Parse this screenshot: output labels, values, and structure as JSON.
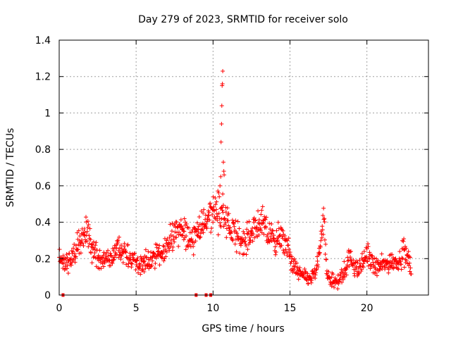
{
  "chart_data": {
    "type": "scatter",
    "title": "Day 279 of 2023, SRMTID for receiver solo",
    "xlabel": "GPS time / hours",
    "ylabel": "SRMTID / TECUs",
    "xlim": [
      0,
      24
    ],
    "ylim": [
      0,
      1.4
    ],
    "xticks": [
      0,
      5,
      10,
      15,
      20
    ],
    "xtick_labels": [
      "0",
      "5",
      "10",
      "15",
      "20"
    ],
    "yticks": [
      0,
      0.2,
      0.4,
      0.6,
      0.8,
      1,
      1.2,
      1.4
    ],
    "ytick_labels": [
      "0",
      "0.2",
      "0.4",
      "0.6",
      "0.8",
      "1",
      "1.2",
      "1.4"
    ],
    "grid": true,
    "legend": "none",
    "marker": "+",
    "colors": {
      "series": "#ff0000",
      "grid": "#a0a0a0",
      "axis": "#000000"
    },
    "series": [
      {
        "name": "SRMTID",
        "anchors": [
          [
            0.0,
            0.2
          ],
          [
            0.2,
            0.19
          ],
          [
            0.5,
            0.17
          ],
          [
            0.7,
            0.19
          ],
          [
            0.9,
            0.22
          ],
          [
            1.1,
            0.25
          ],
          [
            1.3,
            0.27
          ],
          [
            1.5,
            0.3
          ],
          [
            1.7,
            0.33
          ],
          [
            1.9,
            0.34
          ],
          [
            2.1,
            0.28
          ],
          [
            2.3,
            0.24
          ],
          [
            2.5,
            0.22
          ],
          [
            2.7,
            0.2
          ],
          [
            2.9,
            0.19
          ],
          [
            3.2,
            0.2
          ],
          [
            3.5,
            0.22
          ],
          [
            3.8,
            0.24
          ],
          [
            4.0,
            0.25
          ],
          [
            4.3,
            0.23
          ],
          [
            4.6,
            0.2
          ],
          [
            5.0,
            0.18
          ],
          [
            5.4,
            0.17
          ],
          [
            5.8,
            0.18
          ],
          [
            6.2,
            0.2
          ],
          [
            6.6,
            0.23
          ],
          [
            7.0,
            0.27
          ],
          [
            7.4,
            0.32
          ],
          [
            7.8,
            0.35
          ],
          [
            8.2,
            0.34
          ],
          [
            8.5,
            0.3
          ],
          [
            8.8,
            0.33
          ],
          [
            9.1,
            0.37
          ],
          [
            9.4,
            0.38
          ],
          [
            9.7,
            0.42
          ],
          [
            10.0,
            0.47
          ],
          [
            10.3,
            0.46
          ],
          [
            10.6,
            0.44
          ],
          [
            10.9,
            0.38
          ],
          [
            11.2,
            0.35
          ],
          [
            11.5,
            0.32
          ],
          [
            11.8,
            0.3
          ],
          [
            12.1,
            0.3
          ],
          [
            12.4,
            0.32
          ],
          [
            12.7,
            0.37
          ],
          [
            13.0,
            0.4
          ],
          [
            13.3,
            0.38
          ],
          [
            13.6,
            0.32
          ],
          [
            13.9,
            0.3
          ],
          [
            14.2,
            0.3
          ],
          [
            14.5,
            0.3
          ],
          [
            14.8,
            0.27
          ],
          [
            15.0,
            0.21
          ],
          [
            15.3,
            0.15
          ],
          [
            15.6,
            0.12
          ],
          [
            15.9,
            0.1
          ],
          [
            16.2,
            0.09
          ],
          [
            16.5,
            0.1
          ],
          [
            16.8,
            0.16
          ],
          [
            17.0,
            0.3
          ],
          [
            17.2,
            0.4
          ],
          [
            17.4,
            0.11
          ],
          [
            17.7,
            0.08
          ],
          [
            18.0,
            0.07
          ],
          [
            18.2,
            0.08
          ],
          [
            18.5,
            0.12
          ],
          [
            18.8,
            0.2
          ],
          [
            19.1,
            0.18
          ],
          [
            19.4,
            0.13
          ],
          [
            19.7,
            0.17
          ],
          [
            20.0,
            0.23
          ],
          [
            20.3,
            0.17
          ],
          [
            20.6,
            0.15
          ],
          [
            20.9,
            0.16
          ],
          [
            21.2,
            0.17
          ],
          [
            21.5,
            0.18
          ],
          [
            21.8,
            0.19
          ],
          [
            22.1,
            0.19
          ],
          [
            22.4,
            0.24
          ],
          [
            22.7,
            0.18
          ],
          [
            22.9,
            0.13
          ]
        ],
        "spikes": [
          [
            10.45,
            0.6
          ],
          [
            10.5,
            0.65
          ],
          [
            10.52,
            0.84
          ],
          [
            10.55,
            0.94
          ],
          [
            10.57,
            1.04
          ],
          [
            10.59,
            1.15
          ],
          [
            10.61,
            1.16
          ],
          [
            10.63,
            1.23
          ],
          [
            10.67,
            0.73
          ],
          [
            10.7,
            0.68
          ],
          [
            10.72,
            0.66
          ]
        ],
        "zero_points": [
          0.25,
          8.9,
          9.55,
          9.85
        ]
      }
    ]
  }
}
